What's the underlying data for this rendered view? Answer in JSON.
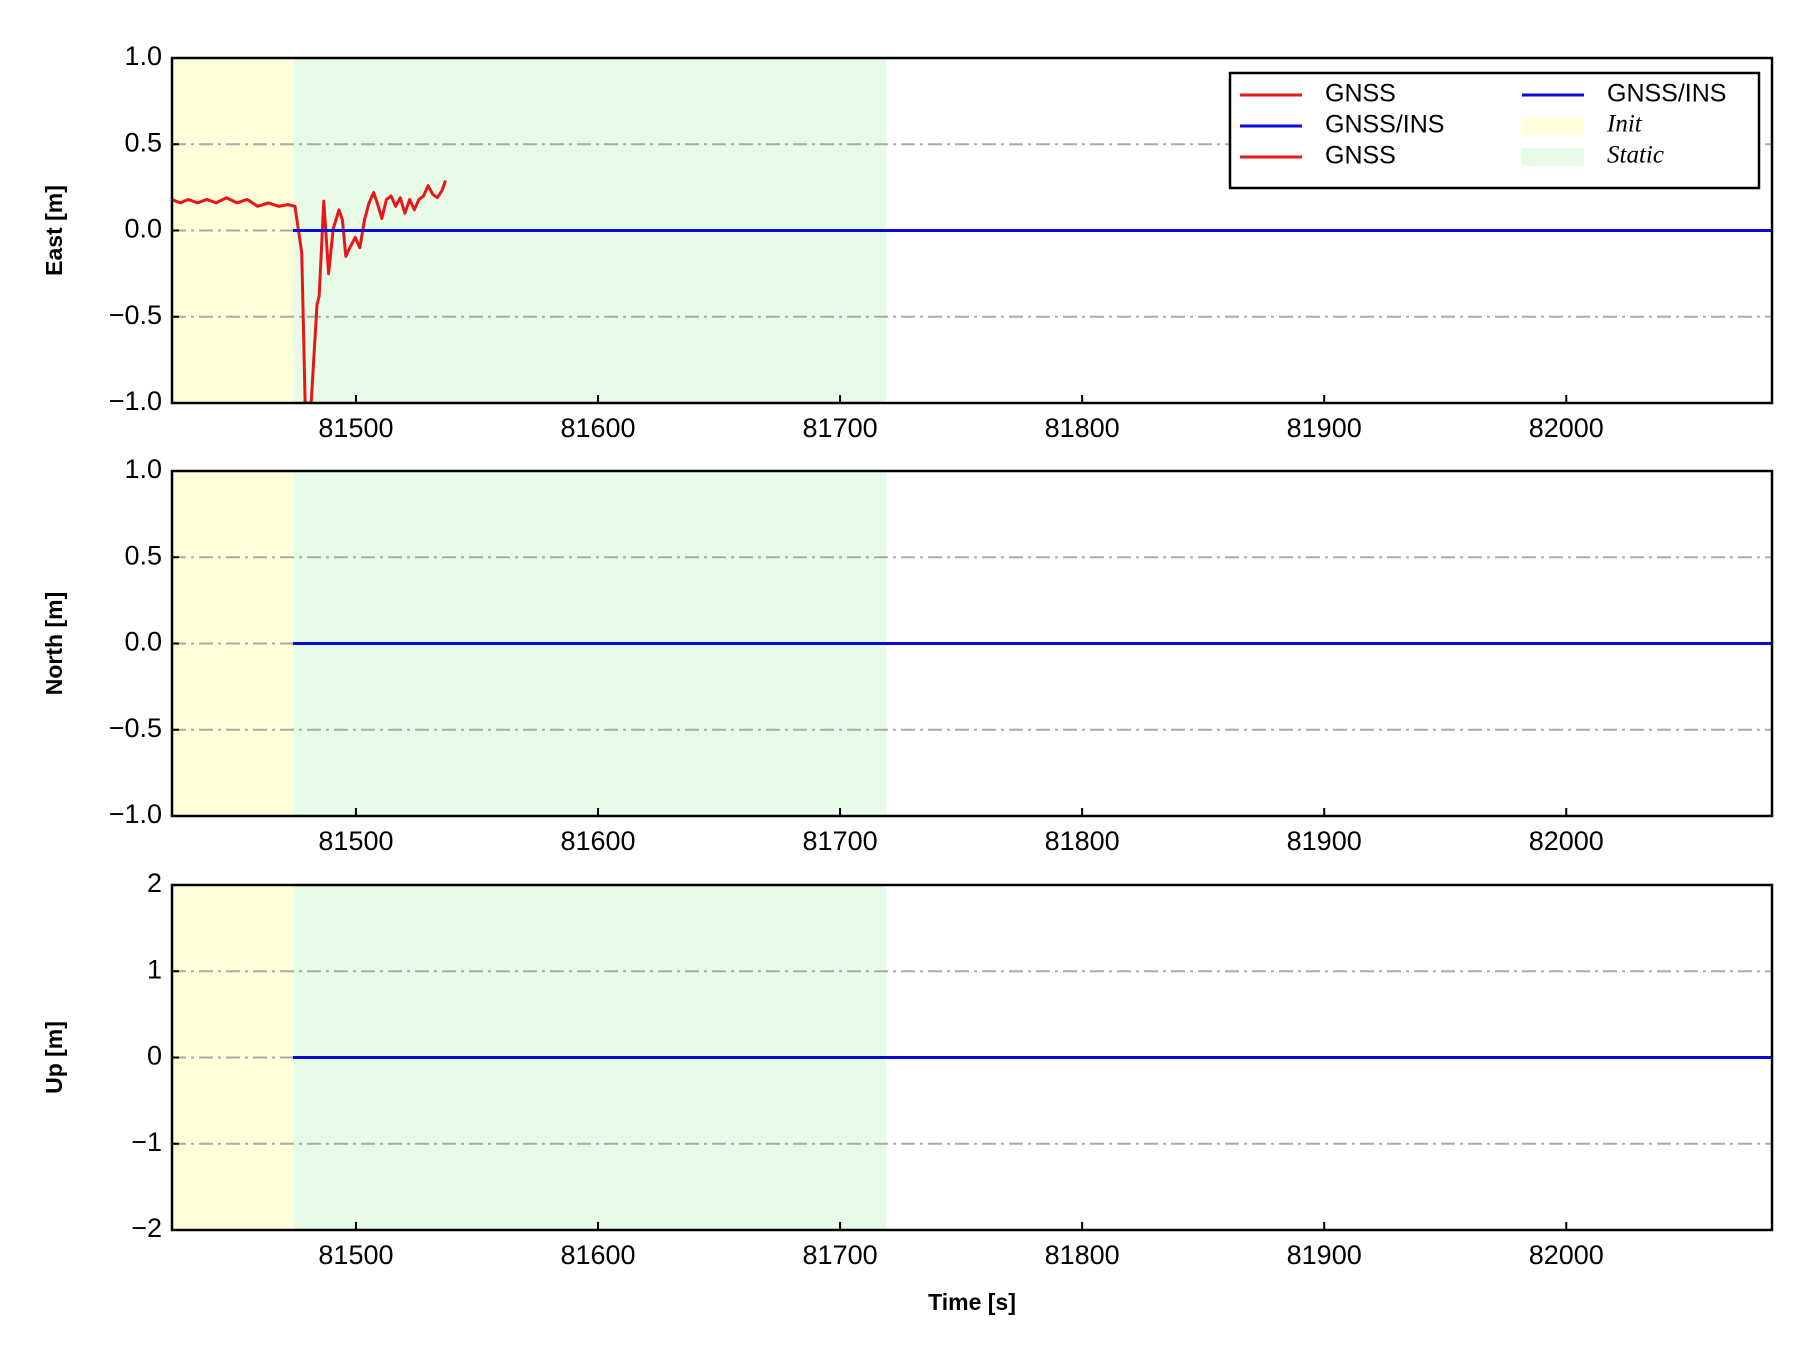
{
  "chart_data": [
    {
      "type": "line",
      "ylabel": "East [m]",
      "xlim": [
        81424,
        82085
      ],
      "xticks": [
        81500,
        81600,
        81700,
        81800,
        81900,
        82000
      ],
      "ylim": [
        -1,
        1
      ],
      "yticks": [
        {
          "value": -1,
          "label": "−1.0"
        },
        {
          "value": -0.5,
          "label": "−0.5"
        },
        {
          "value": 0,
          "label": "0.0"
        },
        {
          "value": 0.5,
          "label": "0.5"
        },
        {
          "value": 1,
          "label": "1.0"
        }
      ],
      "grid": true,
      "regions": [
        {
          "start": 81424,
          "end": 81474,
          "color": "#ffffd9"
        },
        {
          "start": 81474,
          "end": 81719,
          "color": "#e6fce6"
        }
      ],
      "series": [
        {
          "color": "#e8151b",
          "x": [
            81424,
            81427.4,
            81430.7,
            81434.5,
            81438.4,
            81442.2,
            81446.5,
            81450.8,
            81455.1,
            81459.4,
            81463.8,
            81468.1,
            81471.9,
            81474.8,
            81477.6,
            81479,
            81481.5,
            81483.9,
            81484.8,
            81486.7,
            81488.7,
            81490.6,
            81493,
            81494.4,
            81495.8,
            81497.8,
            81499.7,
            81501.6,
            81503.5,
            81505.4,
            81507.3,
            81508.8,
            81510.7,
            81512.6,
            81514.5,
            81516.4,
            81518.3,
            81520.2,
            81522.2,
            81524.1,
            81526,
            81527.9,
            81529.8,
            81531.7,
            81533.6,
            81535.5,
            81537
          ],
          "values": [
            0.18,
            0.16,
            0.18,
            0.16,
            0.18,
            0.16,
            0.19,
            0.16,
            0.18,
            0.14,
            0.16,
            0.14,
            0.15,
            0.14,
            -0.13,
            -1.0,
            -1.0,
            -0.43,
            -0.38,
            0.17,
            -0.25,
            0.01,
            0.12,
            0.06,
            -0.15,
            -0.09,
            -0.04,
            -0.1,
            0.06,
            0.16,
            0.22,
            0.16,
            0.07,
            0.18,
            0.2,
            0.14,
            0.19,
            0.1,
            0.18,
            0.12,
            0.18,
            0.2,
            0.26,
            0.21,
            0.19,
            0.23,
            0.29
          ]
        },
        {
          "color": "#0b0bd6",
          "x": [
            81474,
            82085
          ],
          "values": [
            0,
            0
          ]
        }
      ],
      "legend": {
        "loc": "upper right",
        "ncol": 2,
        "entries": [
          {
            "label": "GNSS",
            "kind": "line",
            "color": "#e8151b"
          },
          {
            "label": "GNSS/INS",
            "kind": "line",
            "color": "#0b0bd6"
          },
          {
            "label": "GNSS",
            "kind": "line",
            "color": "#e8151b"
          },
          {
            "label": "GNSS/INS",
            "kind": "line",
            "color": "#0b0bd6"
          },
          {
            "label": "Init",
            "kind": "patch",
            "color": "#ffffd9"
          },
          {
            "label": "Static",
            "kind": "patch",
            "color": "#e6fce6"
          }
        ]
      }
    },
    {
      "type": "line",
      "ylabel": "North [m]",
      "xlim": [
        81424,
        82085
      ],
      "xticks": [
        81500,
        81600,
        81700,
        81800,
        81900,
        82000
      ],
      "ylim": [
        -1,
        1
      ],
      "yticks": [
        {
          "value": -1,
          "label": "−1.0"
        },
        {
          "value": -0.5,
          "label": "−0.5"
        },
        {
          "value": 0,
          "label": "0.0"
        },
        {
          "value": 0.5,
          "label": "0.5"
        },
        {
          "value": 1,
          "label": "1.0"
        }
      ],
      "grid": true,
      "regions": [
        {
          "start": 81424,
          "end": 81474,
          "color": "#ffffd9"
        },
        {
          "start": 81474,
          "end": 81719,
          "color": "#e6fce6"
        }
      ],
      "series": [
        {
          "color": "#0b0bd6",
          "x": [
            81474,
            82085
          ],
          "values": [
            0,
            0
          ]
        }
      ]
    },
    {
      "type": "line",
      "ylabel": "Up [m]",
      "xlabel": "Time [s]",
      "xlim": [
        81424,
        82085
      ],
      "xticks": [
        81500,
        81600,
        81700,
        81800,
        81900,
        82000
      ],
      "ylim": [
        -2,
        2
      ],
      "yticks": [
        {
          "value": -2,
          "label": "−2"
        },
        {
          "value": -1,
          "label": "−1"
        },
        0,
        1,
        2
      ],
      "grid": true,
      "regions": [
        {
          "start": 81424,
          "end": 81474,
          "color": "#ffffd9"
        },
        {
          "start": 81474,
          "end": 81719,
          "color": "#e6fce6"
        }
      ],
      "series": [
        {
          "color": "#0b0bd6",
          "x": [
            81474,
            82085
          ],
          "values": [
            0,
            0
          ]
        }
      ]
    }
  ]
}
